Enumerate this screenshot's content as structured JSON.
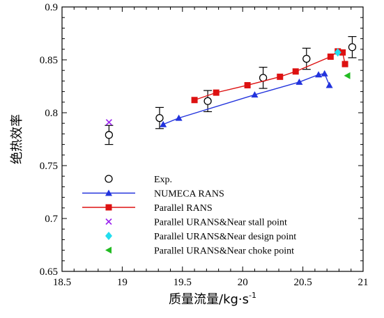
{
  "chart_data": {
    "type": "scatter",
    "xlabel": "质量流量/kg·s",
    "xlabel_sup": "-1",
    "ylabel": "绝热效率",
    "xlim": [
      18.5,
      21
    ],
    "ylim": [
      0.65,
      0.9
    ],
    "x_ticks": [
      "18.5",
      "19",
      "19.5",
      "20",
      "20.5",
      "21"
    ],
    "x_tick_values": [
      18.5,
      19,
      19.5,
      20,
      20.5,
      21
    ],
    "y_ticks": [
      "0.65",
      "0.7",
      "0.75",
      "0.8",
      "0.85",
      "0.9"
    ],
    "y_tick_values": [
      0.65,
      0.7,
      0.75,
      0.8,
      0.85,
      0.9
    ],
    "grid": false,
    "legend_position": "lower-left",
    "series": [
      {
        "name": "Exp.",
        "marker": "open-circle",
        "color": "#000000",
        "line": false,
        "error_bars": true,
        "x": [
          18.89,
          19.31,
          19.71,
          20.17,
          20.53,
          20.91
        ],
        "y": [
          0.779,
          0.795,
          0.811,
          0.833,
          0.851,
          0.862
        ],
        "err": [
          0.009,
          0.01,
          0.01,
          0.01,
          0.01,
          0.01
        ]
      },
      {
        "name": "NUMECA RANS",
        "marker": "triangle-up",
        "color": "#2233dd",
        "line": true,
        "x": [
          19.34,
          19.47,
          20.1,
          20.47,
          20.63,
          20.68,
          20.72
        ],
        "y": [
          0.789,
          0.795,
          0.817,
          0.829,
          0.836,
          0.837,
          0.826
        ]
      },
      {
        "name": "Parallel RANS",
        "marker": "square",
        "color": "#dd1111",
        "line": true,
        "x": [
          19.6,
          19.78,
          20.04,
          20.31,
          20.44,
          20.73,
          20.79,
          20.83,
          20.85
        ],
        "y": [
          0.812,
          0.819,
          0.826,
          0.834,
          0.839,
          0.853,
          0.858,
          0.857,
          0.846
        ]
      },
      {
        "name": "Parallel URANS&Near stall point",
        "marker": "x",
        "color": "#9922ee",
        "line": false,
        "x": [
          18.89
        ],
        "y": [
          0.791
        ]
      },
      {
        "name": "Parallel URANS&Near design point",
        "marker": "diamond",
        "color": "#22ddee",
        "line": false,
        "x": [
          20.79
        ],
        "y": [
          0.857
        ]
      },
      {
        "name": "Parallel URANS&Near choke point",
        "marker": "triangle-left",
        "color": "#22bb22",
        "line": false,
        "x": [
          20.87
        ],
        "y": [
          0.835
        ]
      }
    ]
  }
}
